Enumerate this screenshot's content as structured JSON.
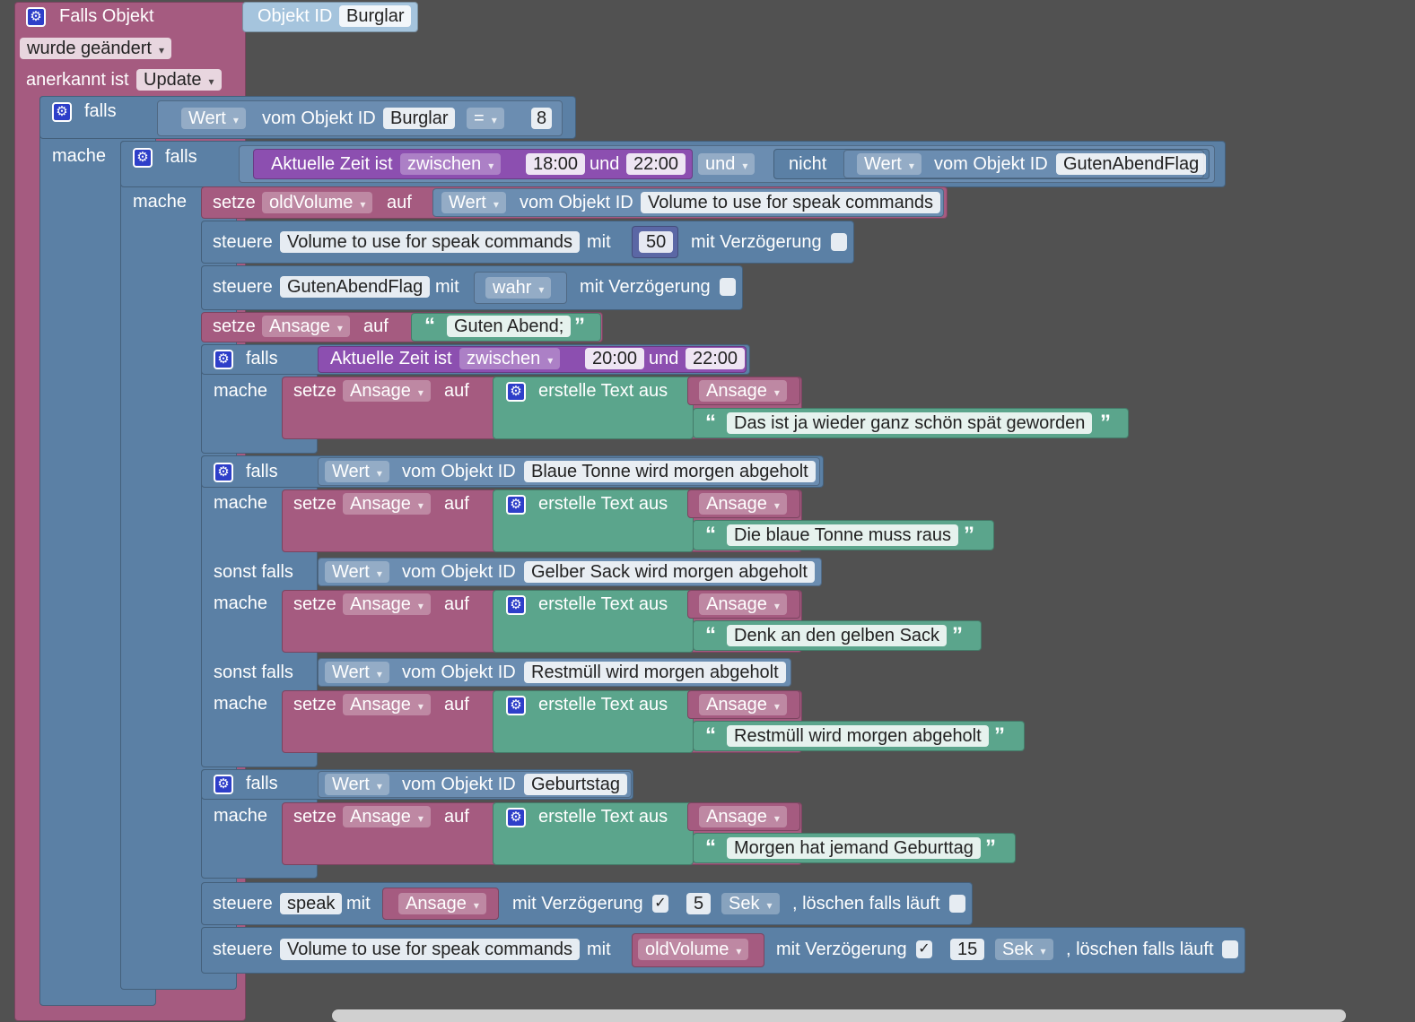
{
  "trigger": {
    "title": "Falls Objekt",
    "object_label": "Objekt ID",
    "object_value": "Burglar",
    "changed": "wurde geändert",
    "ack_label": "anerkannt ist",
    "ack_value": "Update"
  },
  "if1": {
    "falls": "falls",
    "mache": "mache",
    "wert": "Wert",
    "vom": "vom Objekt ID",
    "obj": "Burglar",
    "op": "=",
    "num": "8"
  },
  "if2": {
    "falls": "falls",
    "mache": "mache",
    "time_label": "Aktuelle Zeit ist",
    "mode": "zwischen",
    "t1": "18:00",
    "und": "und",
    "t2": "22:00",
    "logic": "und",
    "nicht": "nicht",
    "wert": "Wert",
    "vom": "vom Objekt ID",
    "obj": "GutenAbendFlag"
  },
  "set_old": {
    "setze": "setze",
    "var": "oldVolume",
    "auf": "auf",
    "wert": "Wert",
    "vom": "vom Objekt ID",
    "obj": "Volume to use for speak commands"
  },
  "ctrl_vol": {
    "steuere": "steuere",
    "obj": "Volume to use for speak commands",
    "mit": "mit",
    "val": "50",
    "delay": "mit Verzögerung"
  },
  "ctrl_flag": {
    "steuere": "steuere",
    "obj": "GutenAbendFlag",
    "mit": "mit",
    "val": "wahr",
    "delay": "mit Verzögerung"
  },
  "set_ansage": {
    "setze": "setze",
    "var": "Ansage",
    "auf": "auf",
    "text": "Guten Abend;"
  },
  "if_late": {
    "falls": "falls",
    "mache": "mache",
    "time_label": "Aktuelle Zeit ist",
    "mode": "zwischen",
    "t1": "20:00",
    "und": "und",
    "t2": "22:00",
    "setze": "setze",
    "var": "Ansage",
    "auf": "auf",
    "join": "erstelle Text aus",
    "item": "Ansage",
    "text": "Das ist ja wieder ganz schön spät geworden"
  },
  "if_trash": {
    "falls": "falls",
    "mache": "mache",
    "sonst": "sonst falls",
    "wert": "Wert",
    "vom": "vom Objekt ID",
    "setze": "setze",
    "var": "Ansage",
    "auf": "auf",
    "join": "erstelle Text aus",
    "item": "Ansage",
    "c1_obj": "Blaue Tonne wird morgen abgeholt",
    "c1_text": "Die blaue Tonne muss raus",
    "c2_obj": "Gelber Sack wird morgen abgeholt",
    "c2_text": "Denk an den gelben Sack",
    "c3_obj": "Restmüll wird morgen abgeholt",
    "c3_text": "Restmüll wird morgen abgeholt"
  },
  "if_bday": {
    "falls": "falls",
    "mache": "mache",
    "wert": "Wert",
    "vom": "vom Objekt ID",
    "obj": "Geburtstag",
    "setze": "setze",
    "var": "Ansage",
    "auf": "auf",
    "join": "erstelle Text aus",
    "item": "Ansage",
    "text": "Morgen hat jemand Geburttag"
  },
  "ctrl_speak": {
    "steuere": "steuere",
    "obj": "speak",
    "mit": "mit",
    "val": "Ansage",
    "delay": "mit Verzögerung",
    "check": "✓",
    "num": "5",
    "unit": "Sek",
    "clear": ", löschen falls läuft"
  },
  "ctrl_restore": {
    "steuere": "steuere",
    "obj": "Volume to use for speak commands",
    "mit": "mit",
    "val": "oldVolume",
    "delay": "mit Verzögerung",
    "check": "✓",
    "num": "15",
    "unit": "Sek",
    "clear": ", löschen falls läuft"
  },
  "icons": {
    "gear": "⚙",
    "quote_open": "“",
    "quote_close": "”"
  },
  "colors": {
    "event": "#a55b80",
    "logic": "#5b80a5",
    "time": "#8c4fb0",
    "text": "#5ba58c",
    "background": "#515151"
  }
}
